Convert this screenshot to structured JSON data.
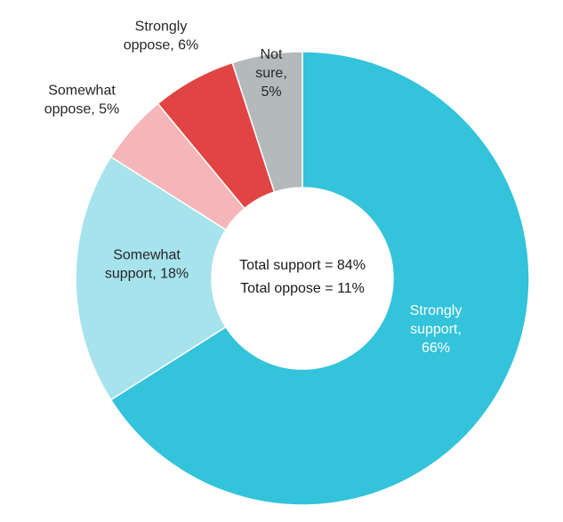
{
  "chart_data": {
    "type": "pie",
    "variant": "donut",
    "categories": [
      "Strongly support",
      "Somewhat support",
      "Somewhat oppose",
      "Strongly oppose",
      "Not sure"
    ],
    "values": [
      66,
      18,
      5,
      6,
      5
    ],
    "unit": "%",
    "colors": [
      "#33C3DA",
      "#A6E3EC",
      "#F4B6B8",
      "#E04543",
      "#B4BABB"
    ],
    "start_angle_deg": 0,
    "direction": "clockwise",
    "labels": [
      {
        "lines": [
          "Strongly",
          "support,",
          "66%"
        ]
      },
      {
        "lines": [
          "Somewhat",
          "support, 18%"
        ]
      },
      {
        "lines": [
          "Somewhat",
          "oppose, 5%"
        ]
      },
      {
        "lines": [
          "Strongly",
          "oppose, 6%"
        ]
      },
      {
        "lines": [
          "Not",
          "sure,",
          "5%"
        ]
      }
    ],
    "center_text": [
      "Total support = 84%",
      "Total oppose = 11%"
    ]
  }
}
